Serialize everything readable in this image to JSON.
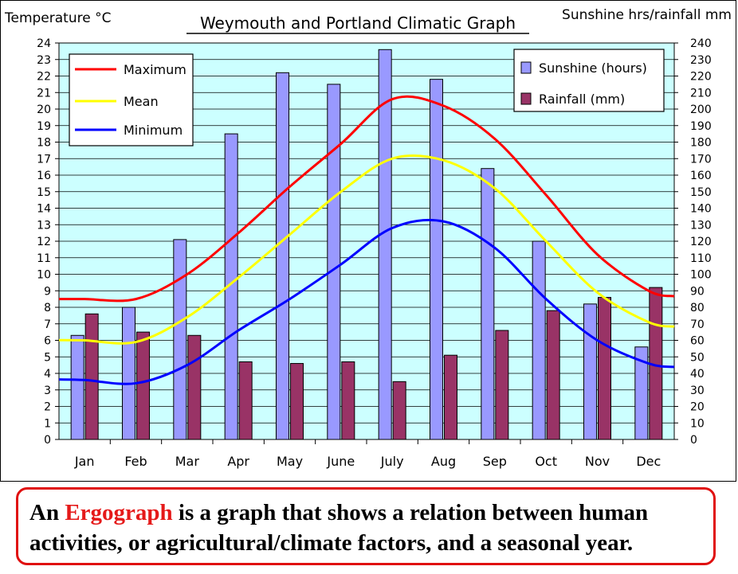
{
  "chart_data": {
    "type": "bar+line",
    "title": "Weymouth and Portland Climatic Graph",
    "y_left_label": "Temperature °C",
    "y_right_label": "Sunshine hrs/rainfall mm",
    "y_left_range": [
      0,
      24
    ],
    "y_right_range": [
      0,
      240
    ],
    "grid": true,
    "legend_lines_position": "top-left",
    "legend_bars_position": "top-right",
    "categories": [
      "Jan",
      "Feb",
      "Mar",
      "Apr",
      "May",
      "June",
      "July",
      "Aug",
      "Sep",
      "Oct",
      "Nov",
      "Dec"
    ],
    "bar_series": [
      {
        "name": "Sunshine (hours)",
        "color": "#9999ff",
        "values": [
          63,
          80,
          121,
          185,
          222,
          215,
          236,
          218,
          164,
          120,
          82,
          56
        ]
      },
      {
        "name": "Rainfall (mm)",
        "color": "#993366",
        "values": [
          76,
          65,
          63,
          47,
          46,
          47,
          35,
          51,
          66,
          78,
          86,
          92
        ]
      }
    ],
    "line_series": [
      {
        "name": "Maximum",
        "color": "#ff0000",
        "values": [
          8.5,
          8.5,
          10.0,
          12.5,
          15.3,
          17.9,
          20.6,
          20.2,
          18.2,
          14.8,
          11.2,
          9.0
        ]
      },
      {
        "name": "Mean",
        "color": "#ffff00",
        "values": [
          6.0,
          5.9,
          7.4,
          9.8,
          12.4,
          15.0,
          17.0,
          16.9,
          15.2,
          12.0,
          8.9,
          7.1
        ]
      },
      {
        "name": "Minimum",
        "color": "#0000ff",
        "values": [
          3.6,
          3.4,
          4.5,
          6.6,
          8.5,
          10.6,
          12.8,
          13.2,
          11.6,
          8.5,
          6.0,
          4.6
        ]
      }
    ]
  },
  "caption": {
    "part1": "An ",
    "highlight": "Ergograph",
    "part2": " is a graph that shows a relation between human activities, or agricultural/climate factors, and a seasonal year.",
    "highlight_color": "#e51a1a"
  }
}
